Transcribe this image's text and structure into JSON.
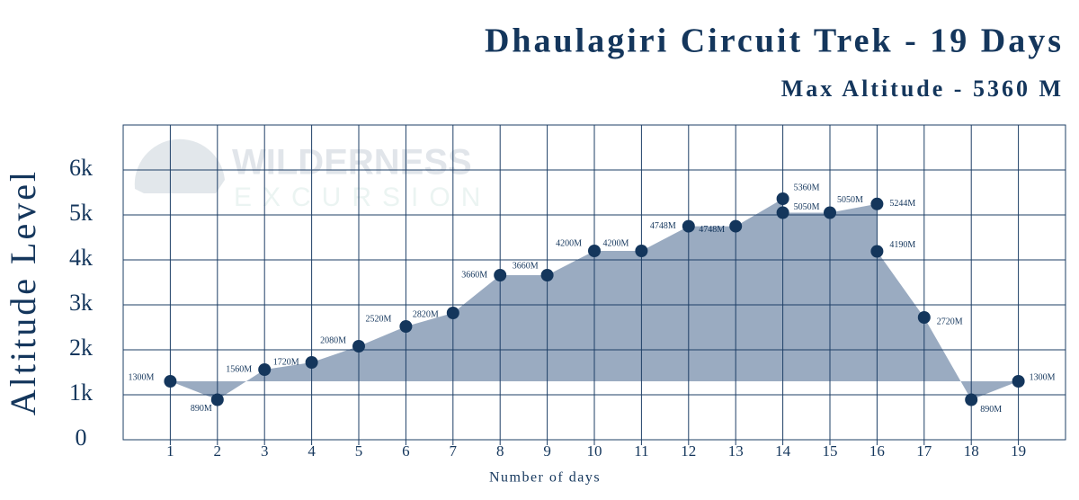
{
  "chart_data": {
    "type": "area",
    "title": "Dhaulagiri Circuit Trek - 19 Days",
    "subtitle": "Max Altitude - 5360 M",
    "y_label": "Altitude Level",
    "x_label": "Number of days",
    "watermark": [
      "WILDERNESS",
      "EXCURSION"
    ],
    "x": [
      1,
      2,
      3,
      4,
      5,
      6,
      7,
      8,
      9,
      10,
      11,
      12,
      13,
      14,
      14,
      15,
      16,
      16,
      17,
      18,
      19
    ],
    "values": [
      1300,
      890,
      1560,
      1720,
      2080,
      2520,
      2820,
      3660,
      3660,
      4200,
      4200,
      4748,
      4748,
      5360,
      5050,
      5050,
      5244,
      4190,
      2720,
      890,
      1300
    ],
    "value_labels": [
      "1300M",
      "890M",
      "1560M",
      "1720M",
      "2080M",
      "2520M",
      "2820M",
      "3660M",
      "3660M",
      "4200M",
      "4200M",
      "4748M",
      "4748M",
      "5360M",
      "5050M",
      "5050M",
      "5244M",
      "4190M",
      "2720M",
      "890M",
      "1300M"
    ],
    "color": "#14365c",
    "fill": "#9aabc1",
    "xlim": [
      0,
      20
    ],
    "xticks": [
      1,
      2,
      3,
      4,
      5,
      6,
      7,
      8,
      9,
      10,
      11,
      12,
      13,
      14,
      15,
      16,
      17,
      18,
      19
    ],
    "ylim": [
      0,
      7000
    ],
    "yticks": [
      0,
      {
        "value": 1000,
        "label": "1k"
      },
      {
        "value": 2000,
        "label": "2k"
      },
      {
        "value": 3000,
        "label": "3k"
      },
      {
        "value": 4000,
        "label": "4k"
      },
      {
        "value": 5000,
        "label": "5k"
      },
      {
        "value": 6000,
        "label": "6k"
      }
    ],
    "grid": true
  }
}
